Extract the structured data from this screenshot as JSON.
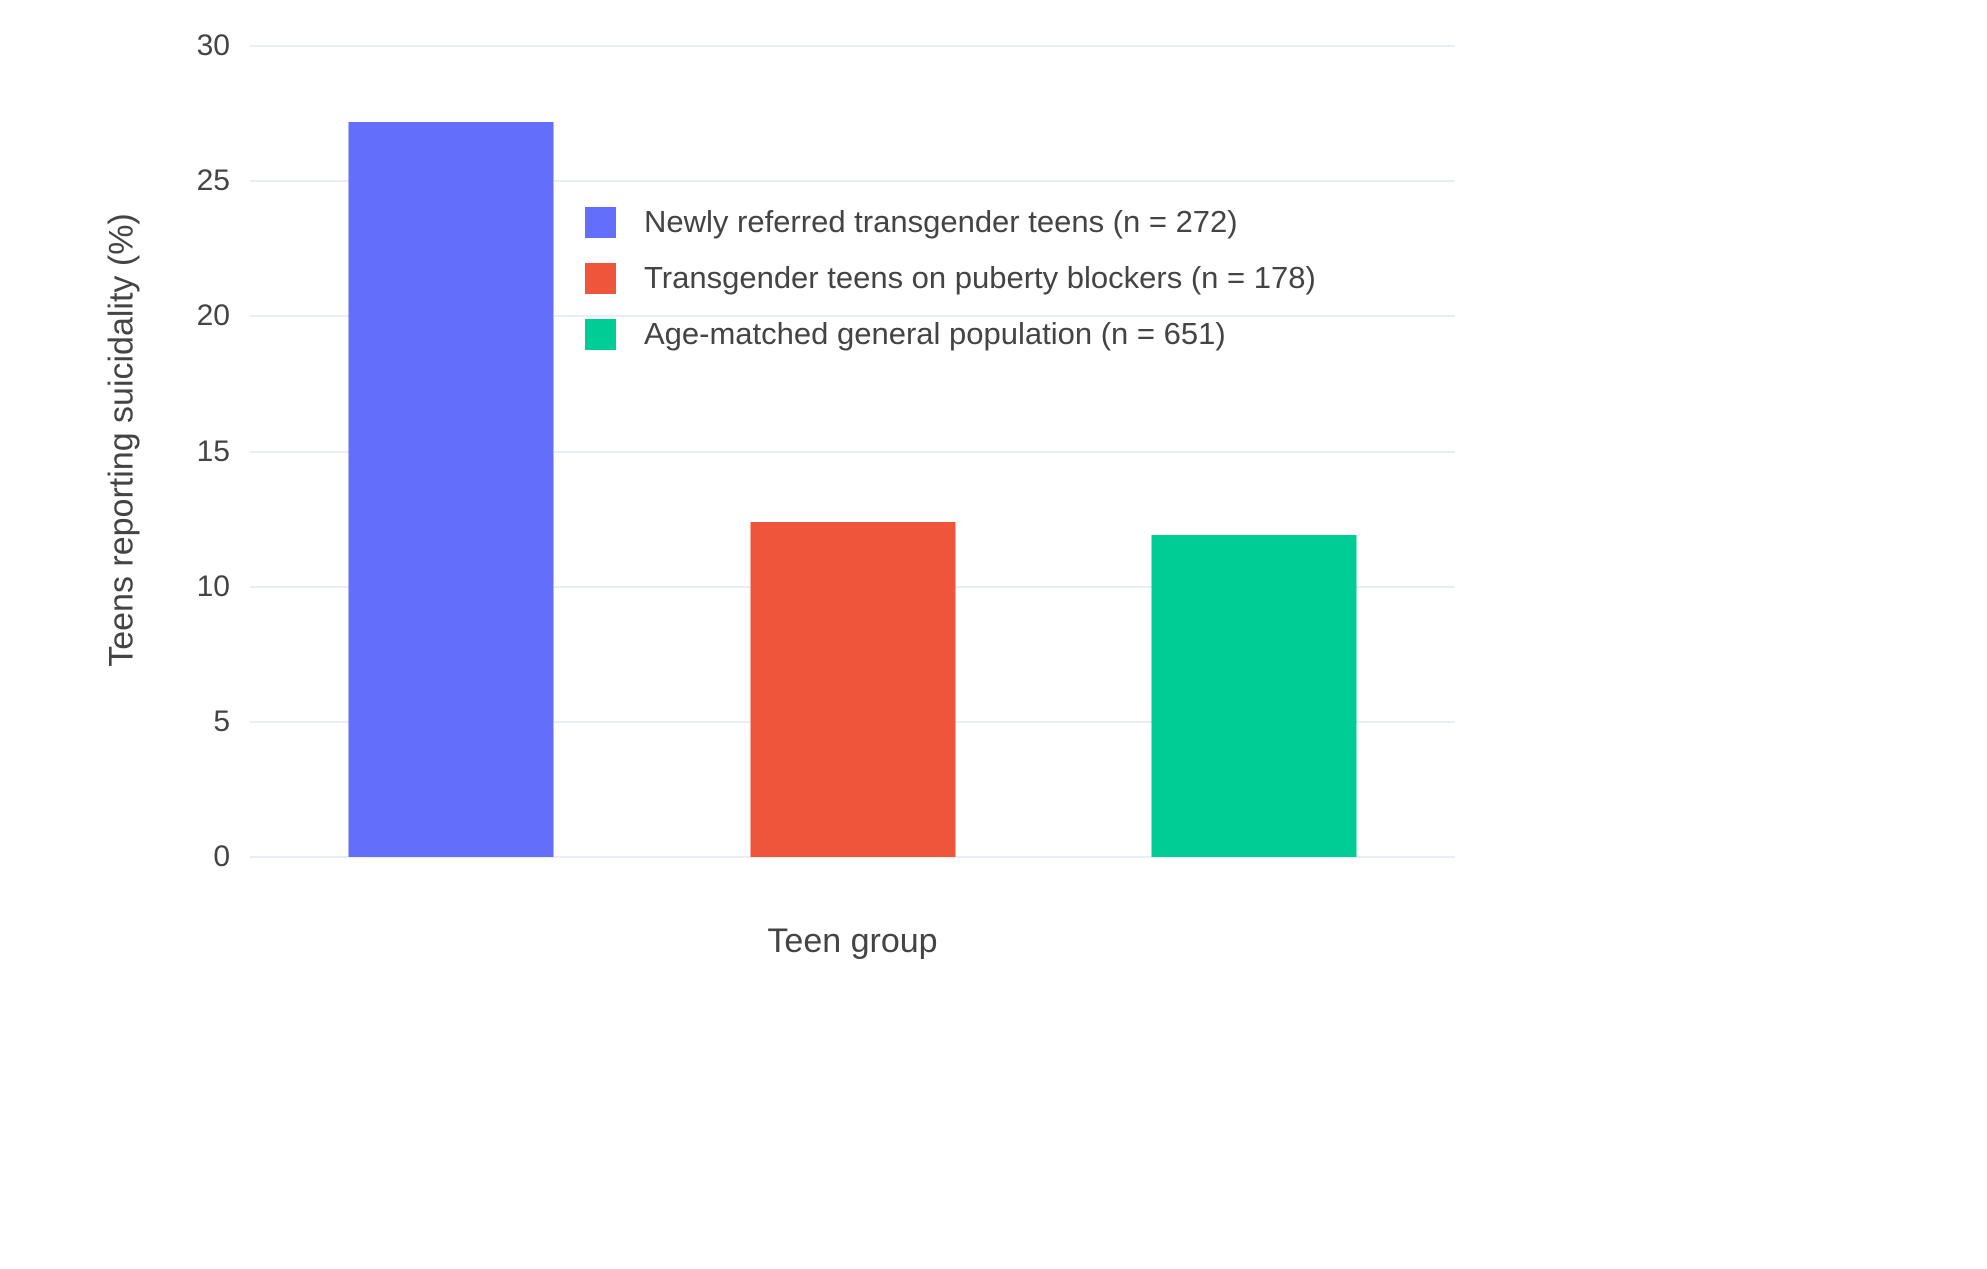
{
  "figure": {
    "background": "#ffffff"
  },
  "chart_data": {
    "type": "bar",
    "title": "",
    "xlabel": "Teen group",
    "ylabel": "Teens reporting suicidality (%)",
    "categories": [
      "Newly referred transgender teens (n = 272)",
      "Transgender teens on puberty blockers (n = 178)",
      "Age-matched general population (n = 651)"
    ],
    "values": [
      27.2,
      12.4,
      11.9
    ],
    "bar_colors": [
      "#636efa",
      "#ef553b",
      "#00cc96"
    ],
    "ylim": [
      0,
      30
    ],
    "yticks": [
      0,
      5,
      10,
      15,
      20,
      25,
      30
    ],
    "grid": true,
    "grid_color": "#e9edf4",
    "text_color": "#444444",
    "legend": {
      "position": "inside-upper-center",
      "entries": [
        {
          "label": "Newly referred transgender teens (n = 272)",
          "color": "#636efa"
        },
        {
          "label": "Transgender teens on puberty blockers (n = 178)",
          "color": "#ef553b"
        },
        {
          "label": "Age-matched general population (n = 651)",
          "color": "#00cc96"
        }
      ]
    }
  }
}
